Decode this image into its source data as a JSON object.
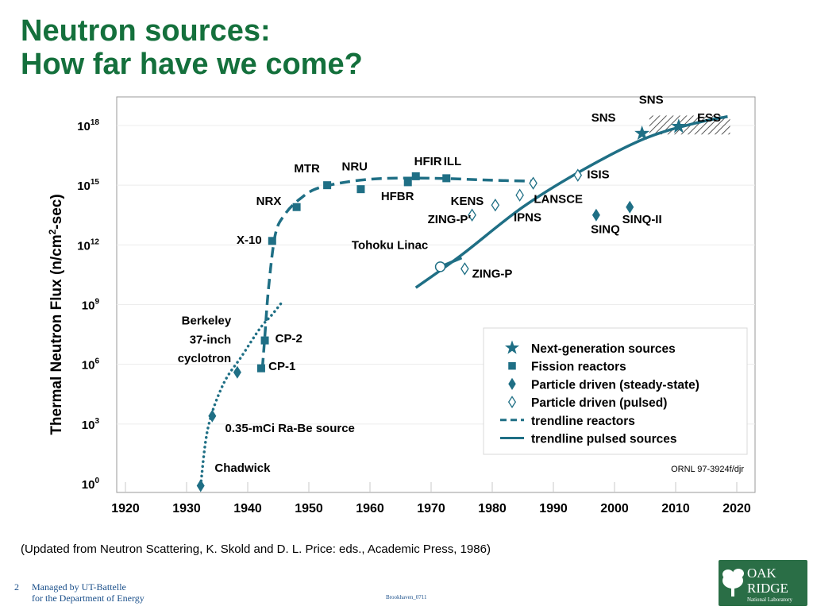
{
  "slide": {
    "title_line1": "Neutron sources:",
    "title_line2": "How far have we come?",
    "caption": "(Updated from Neutron Scattering, K. Skold and D. L. Price: eds., Academic Press, 1986)",
    "slide_number": "2",
    "footer_line1": "Managed by UT-Battelle",
    "footer_line2": "for the Department of Energy",
    "footer_center": "Brookhaven_0711",
    "logo_line1": "OAK",
    "logo_line2": "RIDGE",
    "logo_line3": "National Laboratory",
    "colors": {
      "title": "#14703c",
      "marker": "#1f6f85",
      "footer": "#1a4f8a"
    }
  },
  "chart_data": {
    "type": "scatter",
    "ylabel": "Thermal Neutron Flux (n/cm²-sec)",
    "ylabel_main": "Thermal Neutron Flux (n/cm",
    "ylabel_sup": "2",
    "ylabel_end": "-sec)",
    "y_scale": "log",
    "y_range_log10": [
      0,
      18
    ],
    "y_ticks": [
      {
        "base": "10",
        "exp": "0",
        "v": 0
      },
      {
        "base": "10",
        "exp": "3",
        "v": 3
      },
      {
        "base": "10",
        "exp": "6",
        "v": 6
      },
      {
        "base": "10",
        "exp": "9",
        "v": 9
      },
      {
        "base": "10",
        "exp": "12",
        "v": 12
      },
      {
        "base": "10",
        "exp": "15",
        "v": 15
      },
      {
        "base": "10",
        "exp": "18",
        "v": 18
      }
    ],
    "x_range": [
      1920,
      2020
    ],
    "x_ticks": [
      "1920",
      "1930",
      "1940",
      "1950",
      "1960",
      "1970",
      "1980",
      "1990",
      "2000",
      "2010",
      "2020"
    ],
    "grid": "horizontal",
    "legend_position": "bottom-right",
    "credit": "ORNL 97-3924f/djr",
    "series": [
      {
        "name": "Next-generation sources",
        "marker": "star",
        "points": [
          {
            "x": 2004.5,
            "y": 17.6
          },
          {
            "x": 2010.5,
            "y": 17.95
          }
        ]
      },
      {
        "name": "Fission reactors",
        "marker": "square",
        "points": [
          {
            "x": 1942.2,
            "y": 5.8
          },
          {
            "x": 1942.8,
            "y": 7.2
          },
          {
            "x": 1944,
            "y": 12.2
          },
          {
            "x": 1948,
            "y": 13.9
          },
          {
            "x": 1953,
            "y": 15.0
          },
          {
            "x": 1958.5,
            "y": 14.8
          },
          {
            "x": 1966.2,
            "y": 15.15
          },
          {
            "x": 1967.5,
            "y": 15.45
          },
          {
            "x": 1972.5,
            "y": 15.35
          }
        ]
      },
      {
        "name": "Particle driven (steady-state)",
        "marker": "diamond",
        "points": [
          {
            "x": 1932.3,
            "y": -0.1
          },
          {
            "x": 1934.2,
            "y": 3.4
          },
          {
            "x": 1938.3,
            "y": 5.6
          },
          {
            "x": 1997,
            "y": 13.5
          },
          {
            "x": 2002.5,
            "y": 13.9
          }
        ]
      },
      {
        "name": "Particle driven (pulsed)",
        "marker": "diamond-open",
        "points": [
          {
            "x": 1975.5,
            "y": 10.8
          },
          {
            "x": 1976.7,
            "y": 13.5
          },
          {
            "x": 1980.5,
            "y": 14.0
          },
          {
            "x": 1984.5,
            "y": 14.5
          },
          {
            "x": 1986.7,
            "y": 15.1
          },
          {
            "x": 1994,
            "y": 15.5
          }
        ]
      },
      {
        "name": "trendline reactors",
        "line": "dashed",
        "points": [
          {
            "x": 1942.4,
            "y": 5.8
          },
          {
            "x": 1942.8,
            "y": 7.4
          },
          {
            "x": 1943.4,
            "y": 9.8
          },
          {
            "x": 1944.5,
            "y": 12.5
          },
          {
            "x": 1946,
            "y": 13.5
          },
          {
            "x": 1948.5,
            "y": 14.3
          },
          {
            "x": 1952,
            "y": 14.9
          },
          {
            "x": 1960,
            "y": 15.3
          },
          {
            "x": 1970,
            "y": 15.35
          },
          {
            "x": 1980,
            "y": 15.25
          },
          {
            "x": 1987,
            "y": 15.2
          }
        ]
      },
      {
        "name": "trendline pulsed sources",
        "line": "solid",
        "points": [
          {
            "x": 1967.5,
            "y": 9.85
          },
          {
            "x": 1975,
            "y": 11.5
          },
          {
            "x": 1985,
            "y": 13.9
          },
          {
            "x": 1995,
            "y": 15.8
          },
          {
            "x": 2005,
            "y": 17.35
          },
          {
            "x": 2013,
            "y": 18.1
          },
          {
            "x": 2018.5,
            "y": 18.45
          }
        ]
      },
      {
        "name": "early trend",
        "line": "dotted",
        "points": [
          {
            "x": 1932.3,
            "y": -0.1
          },
          {
            "x": 1933.5,
            "y": 2.8
          },
          {
            "x": 1936,
            "y": 5
          },
          {
            "x": 1939,
            "y": 6.4
          },
          {
            "x": 1942,
            "y": 7.8
          },
          {
            "x": 1944,
            "y": 8.5
          },
          {
            "x": 1945.8,
            "y": 9.2
          }
        ]
      },
      {
        "name": "trend segment",
        "line": "solid",
        "points": [
          {
            "x": 1971.5,
            "y": 10.9
          },
          {
            "x": 1975,
            "y": 11.35
          }
        ]
      }
    ],
    "target_box": {
      "x": [
        2005.7,
        2018.9
      ],
      "y": [
        17.55,
        18.5
      ]
    },
    "open_circle": {
      "x": 1971.5,
      "y": 10.9
    },
    "annotations": [
      {
        "t": "SNS",
        "x": 2006,
        "y": 19.1,
        "anchor": "middle"
      },
      {
        "t": "SNS",
        "x": 2000.2,
        "y": 18.2,
        "anchor": "end"
      },
      {
        "t": "ESS",
        "x": 2013.5,
        "y": 18.2,
        "anchor": "start"
      },
      {
        "t": "ISIS",
        "x": 1995.5,
        "y": 15.35,
        "anchor": "start"
      },
      {
        "t": "LANSCE",
        "x": 1986.8,
        "y": 14.1,
        "anchor": "start"
      },
      {
        "t": "IPNS",
        "x": 1983.5,
        "y": 13.2,
        "anchor": "start"
      },
      {
        "t": "SINQ",
        "x": 1998.5,
        "y": 12.6,
        "anchor": "middle"
      },
      {
        "t": "SINQ-II",
        "x": 2004.5,
        "y": 13.1,
        "anchor": "middle"
      },
      {
        "t": "HFIR",
        "x": 1969.5,
        "y": 16.0,
        "anchor": "middle"
      },
      {
        "t": "ILL",
        "x": 1973.5,
        "y": 16.0,
        "anchor": "middle"
      },
      {
        "t": "NRU",
        "x": 1957.5,
        "y": 15.75,
        "anchor": "middle"
      },
      {
        "t": "MTR",
        "x": 1951.8,
        "y": 15.65,
        "anchor": "end"
      },
      {
        "t": "HFBR",
        "x": 1964.5,
        "y": 14.25,
        "anchor": "middle"
      },
      {
        "t": "KENS",
        "x": 1973.2,
        "y": 14.0,
        "anchor": "start"
      },
      {
        "t": "ZING-P′",
        "x": 1976.5,
        "y": 13.1,
        "anchor": "end"
      },
      {
        "t": "NRX",
        "x": 1945.5,
        "y": 14.0,
        "anchor": "end"
      },
      {
        "t": "Tohoku Linac",
        "x": 1957,
        "y": 11.8,
        "anchor": "start"
      },
      {
        "t": "X-10",
        "x": 1942.3,
        "y": 12.05,
        "anchor": "end"
      },
      {
        "t": "ZING-P",
        "x": 1976.7,
        "y": 10.35,
        "anchor": "start"
      },
      {
        "t": "Berkeley",
        "x": 1937.3,
        "y": 8.0,
        "anchor": "end"
      },
      {
        "t": "37-inch",
        "x": 1937.3,
        "y": 7.05,
        "anchor": "end"
      },
      {
        "t": "cyclotron",
        "x": 1937.3,
        "y": 6.1,
        "anchor": "end"
      },
      {
        "t": "CP-2",
        "x": 1944.5,
        "y": 7.1,
        "anchor": "start"
      },
      {
        "t": "CP-1",
        "x": 1943.4,
        "y": 5.7,
        "anchor": "start"
      },
      {
        "t": "0.35-mCi Ra-Be source",
        "x": 1936.3,
        "y": 2.6,
        "anchor": "start"
      },
      {
        "t": "Chadwick",
        "x": 1934.6,
        "y": 0.6,
        "anchor": "start"
      }
    ]
  }
}
